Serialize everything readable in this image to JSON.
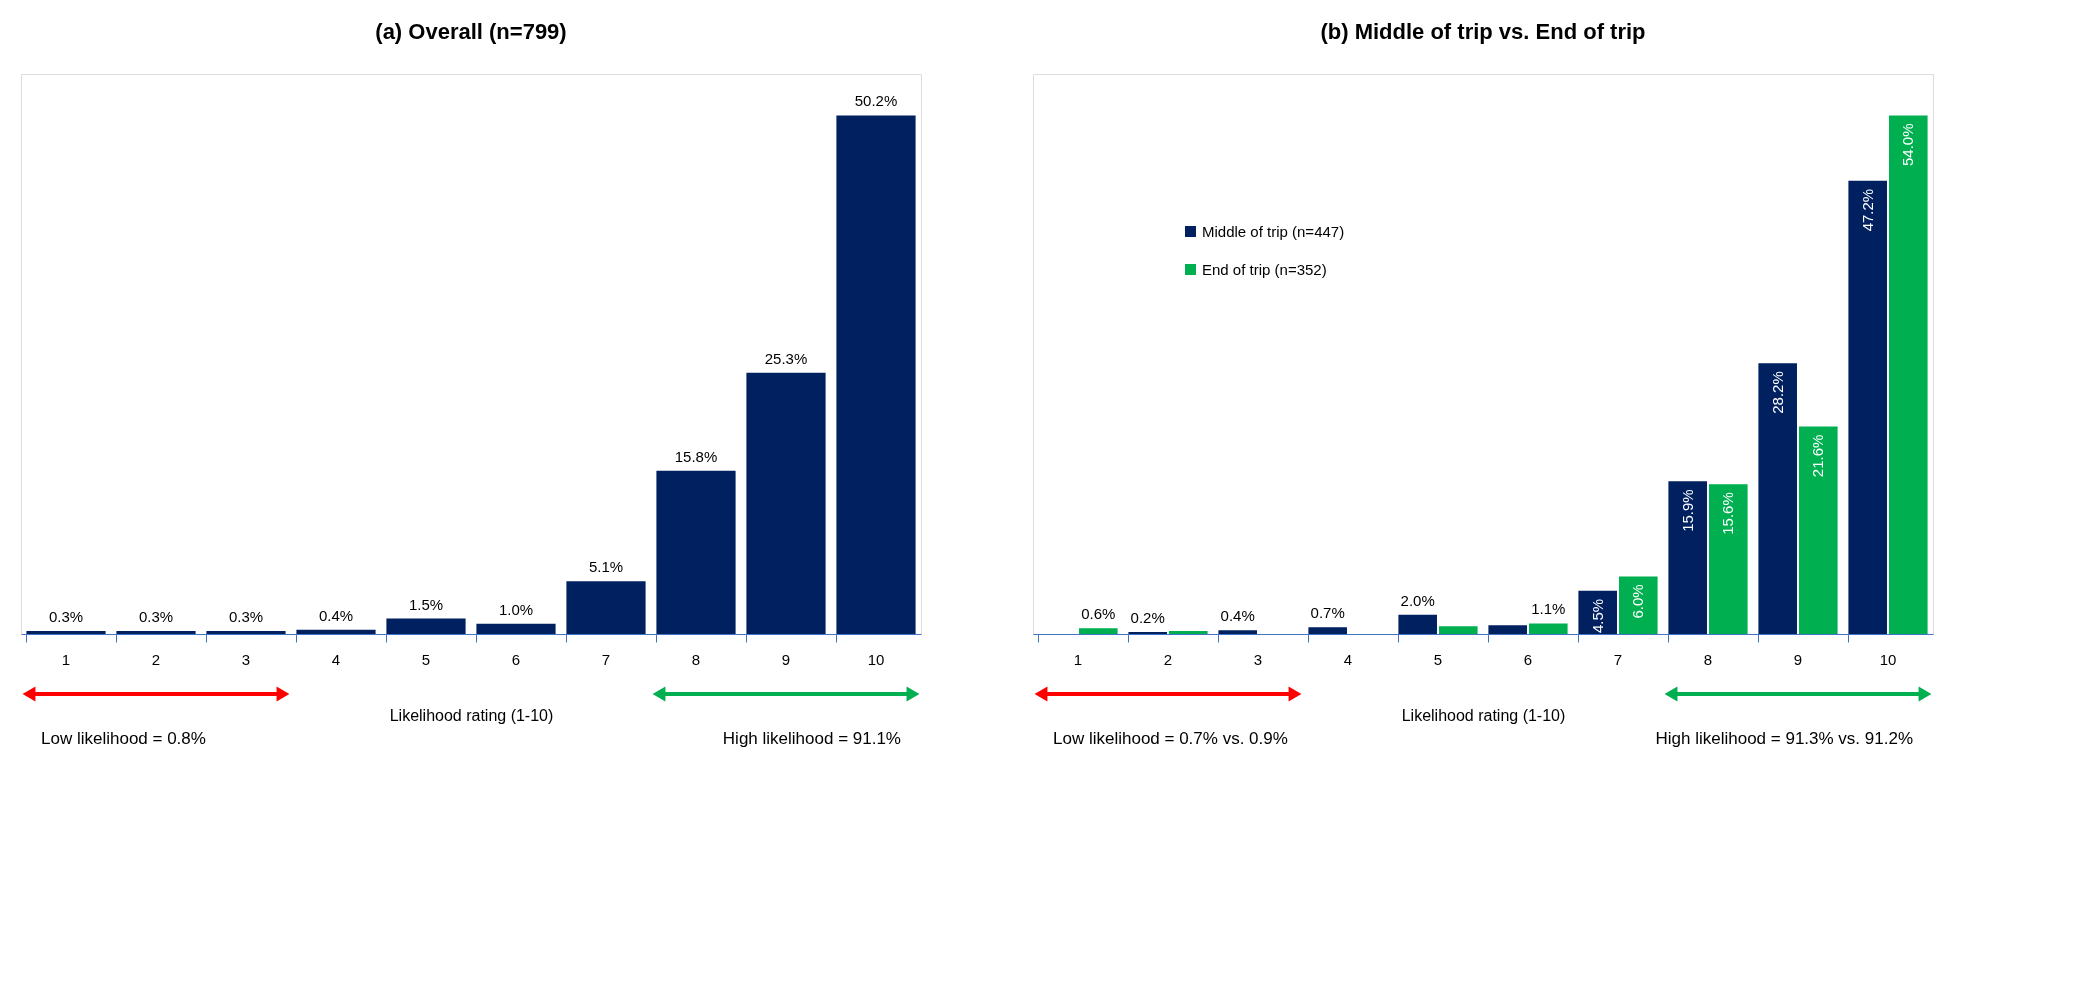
{
  "chart_data": [
    {
      "type": "bar",
      "title": "(a) Overall (n=799)",
      "xlabel": "Likelihood rating (1-10)",
      "categories": [
        "1",
        "2",
        "3",
        "4",
        "5",
        "6",
        "7",
        "8",
        "9",
        "10"
      ],
      "values": [
        0.3,
        0.3,
        0.3,
        0.4,
        1.5,
        1.0,
        5.1,
        15.8,
        25.3,
        50.2
      ],
      "color": "#002060",
      "value_labels": [
        "0.3%",
        "0.3%",
        "0.3%",
        "0.4%",
        "1.5%",
        "1.0%",
        "5.1%",
        "15.8%",
        "25.3%",
        "50.2%"
      ],
      "annotations": [
        "Low likelihood = 0.8%",
        "High likelihood = 91.1%"
      ],
      "legend": false,
      "grid": false
    },
    {
      "type": "bar",
      "title": "(b) Middle of trip vs. End of trip",
      "xlabel": "Likelihood rating (1-10)",
      "categories": [
        "1",
        "2",
        "3",
        "4",
        "5",
        "6",
        "7",
        "8",
        "9",
        "10"
      ],
      "series": [
        {
          "name": "Middle of trip (n=447)",
          "color": "#002060",
          "values": [
            0,
            0.2,
            0.4,
            0.7,
            2.0,
            0.9,
            4.5,
            15.9,
            28.2,
            47.2
          ],
          "value_labels": [
            null,
            "0.2%",
            "0.4%",
            "0.7%",
            "2.0%",
            null,
            "4.5%",
            "15.9%",
            "28.2%",
            "47.2%"
          ]
        },
        {
          "name": "End of trip (n=352)",
          "color": "#00B050",
          "values": [
            0.6,
            0.3,
            0,
            0,
            0.8,
            1.1,
            6.0,
            15.6,
            21.6,
            54.0
          ],
          "value_labels": [
            "0.6%",
            null,
            null,
            null,
            null,
            "1.1%",
            "6.0%",
            "15.6%",
            "21.6%",
            "54.0%"
          ]
        }
      ],
      "annotations": [
        "Low likelihood = 0.7% vs. 0.9%",
        "High likelihood = 91.3% vs. 91.2%"
      ],
      "legend": "top left",
      "grid": false
    }
  ]
}
